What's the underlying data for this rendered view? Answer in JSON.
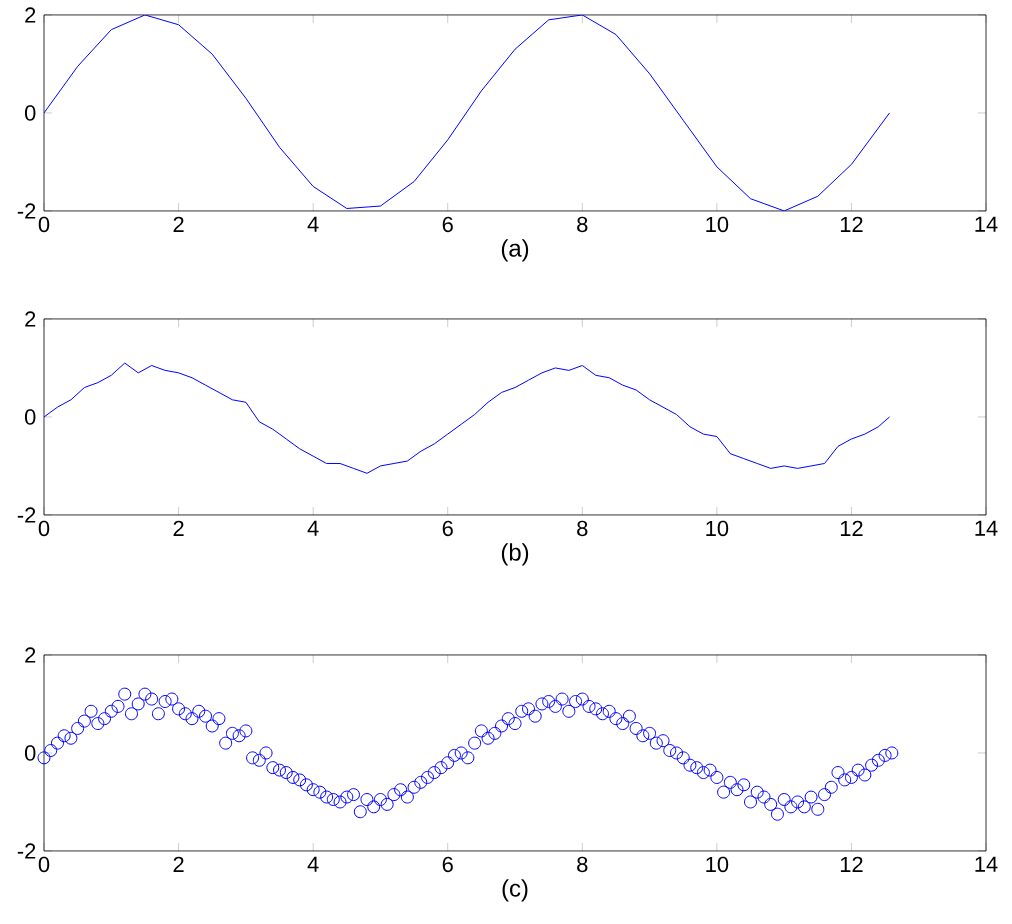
{
  "chart_data": [
    {
      "type": "line",
      "xlabel": "(a)",
      "xlim": [
        0,
        14
      ],
      "ylim": [
        -2,
        2
      ],
      "xticks": [
        0,
        2,
        4,
        6,
        8,
        10,
        12,
        14
      ],
      "yticks": [
        -2,
        0,
        2
      ],
      "series": [
        {
          "color": "#0000ff",
          "x": [
            0,
            0.5,
            1,
            1.5,
            2,
            2.5,
            3,
            3.5,
            4,
            4.5,
            5,
            5.5,
            6,
            6.5,
            7,
            7.5,
            8,
            8.5,
            9,
            9.5,
            10,
            10.5,
            11,
            11.5,
            12,
            12.566
          ],
          "values": [
            0,
            0.95,
            1.7,
            2.0,
            1.8,
            1.2,
            0.3,
            -0.7,
            -1.5,
            -1.95,
            -1.9,
            -1.4,
            -0.55,
            0.45,
            1.3,
            1.9,
            2.0,
            1.6,
            0.8,
            -0.15,
            -1.1,
            -1.75,
            -2.0,
            -1.7,
            -1.05,
            0
          ]
        }
      ]
    },
    {
      "type": "line",
      "xlabel": "(b)",
      "xlim": [
        0,
        14
      ],
      "ylim": [
        -2,
        2
      ],
      "xticks": [
        0,
        2,
        4,
        6,
        8,
        10,
        12,
        14
      ],
      "yticks": [
        -2,
        0,
        2
      ],
      "series": [
        {
          "color": "#0000ff",
          "x": [
            0,
            0.2,
            0.4,
            0.6,
            0.8,
            1.0,
            1.2,
            1.4,
            1.6,
            1.8,
            2.0,
            2.2,
            2.4,
            2.6,
            2.8,
            3.0,
            3.2,
            3.4,
            3.6,
            3.8,
            4.0,
            4.2,
            4.4,
            4.6,
            4.8,
            5.0,
            5.2,
            5.4,
            5.6,
            5.8,
            6.0,
            6.2,
            6.4,
            6.6,
            6.8,
            7.0,
            7.2,
            7.4,
            7.6,
            7.8,
            8.0,
            8.2,
            8.4,
            8.6,
            8.8,
            9.0,
            9.2,
            9.4,
            9.6,
            9.8,
            10.0,
            10.2,
            10.4,
            10.6,
            10.8,
            11.0,
            11.2,
            11.4,
            11.6,
            11.8,
            12.0,
            12.2,
            12.4,
            12.566
          ],
          "values": [
            0,
            0.2,
            0.35,
            0.6,
            0.7,
            0.85,
            1.1,
            0.9,
            1.05,
            0.95,
            0.9,
            0.8,
            0.65,
            0.5,
            0.35,
            0.3,
            -0.1,
            -0.25,
            -0.45,
            -0.65,
            -0.8,
            -0.95,
            -0.95,
            -1.05,
            -1.15,
            -1.0,
            -0.95,
            -0.9,
            -0.7,
            -0.55,
            -0.35,
            -0.15,
            0.05,
            0.3,
            0.5,
            0.6,
            0.75,
            0.9,
            1.0,
            0.95,
            1.05,
            0.85,
            0.8,
            0.65,
            0.55,
            0.35,
            0.2,
            0.05,
            -0.2,
            -0.35,
            -0.4,
            -0.75,
            -0.85,
            -0.95,
            -1.05,
            -1.0,
            -1.05,
            -1.0,
            -0.95,
            -0.6,
            -0.45,
            -0.35,
            -0.2,
            0
          ]
        }
      ]
    },
    {
      "type": "scatter",
      "xlabel": "(c)",
      "xlim": [
        0,
        14
      ],
      "ylim": [
        -2,
        2
      ],
      "xticks": [
        0,
        2,
        4,
        6,
        8,
        10,
        12,
        14
      ],
      "yticks": [
        -2,
        0,
        2
      ],
      "marker": "circle",
      "series": [
        {
          "color": "#0000ff",
          "x": [
            0,
            0.1,
            0.2,
            0.3,
            0.4,
            0.5,
            0.6,
            0.7,
            0.8,
            0.9,
            1.0,
            1.1,
            1.2,
            1.3,
            1.4,
            1.5,
            1.6,
            1.7,
            1.8,
            1.9,
            2.0,
            2.1,
            2.2,
            2.3,
            2.4,
            2.5,
            2.6,
            2.7,
            2.8,
            2.9,
            3.0,
            3.1,
            3.2,
            3.3,
            3.4,
            3.5,
            3.6,
            3.7,
            3.8,
            3.9,
            4.0,
            4.1,
            4.2,
            4.3,
            4.4,
            4.5,
            4.6,
            4.7,
            4.8,
            4.9,
            5.0,
            5.1,
            5.2,
            5.3,
            5.4,
            5.5,
            5.6,
            5.7,
            5.8,
            5.9,
            6.0,
            6.1,
            6.2,
            6.3,
            6.4,
            6.5,
            6.6,
            6.7,
            6.8,
            6.9,
            7.0,
            7.1,
            7.2,
            7.3,
            7.4,
            7.5,
            7.6,
            7.7,
            7.8,
            7.9,
            8.0,
            8.1,
            8.2,
            8.3,
            8.4,
            8.5,
            8.6,
            8.7,
            8.8,
            8.9,
            9.0,
            9.1,
            9.2,
            9.3,
            9.4,
            9.5,
            9.6,
            9.7,
            9.8,
            9.9,
            10.0,
            10.1,
            10.2,
            10.3,
            10.4,
            10.5,
            10.6,
            10.7,
            10.8,
            10.9,
            11.0,
            11.1,
            11.2,
            11.3,
            11.4,
            11.5,
            11.6,
            11.7,
            11.8,
            11.9,
            12.0,
            12.1,
            12.2,
            12.3,
            12.4,
            12.5,
            12.6
          ],
          "values": [
            -0.1,
            0.05,
            0.2,
            0.35,
            0.3,
            0.5,
            0.65,
            0.85,
            0.6,
            0.7,
            0.85,
            0.95,
            1.2,
            0.8,
            1.0,
            1.2,
            1.1,
            0.8,
            1.05,
            1.1,
            0.9,
            0.8,
            0.7,
            0.85,
            0.75,
            0.55,
            0.7,
            0.2,
            0.4,
            0.35,
            0.45,
            -0.1,
            -0.15,
            0.0,
            -0.3,
            -0.35,
            -0.4,
            -0.5,
            -0.55,
            -0.65,
            -0.75,
            -0.8,
            -0.9,
            -0.95,
            -1.0,
            -0.9,
            -0.85,
            -1.2,
            -0.95,
            -1.1,
            -0.95,
            -1.05,
            -0.85,
            -0.75,
            -0.9,
            -0.7,
            -0.6,
            -0.5,
            -0.4,
            -0.3,
            -0.2,
            -0.05,
            0.0,
            -0.1,
            0.2,
            0.45,
            0.3,
            0.4,
            0.55,
            0.7,
            0.6,
            0.85,
            0.9,
            0.75,
            1.0,
            1.05,
            0.95,
            1.1,
            0.85,
            1.05,
            1.1,
            0.95,
            0.9,
            0.8,
            0.85,
            0.7,
            0.6,
            0.75,
            0.5,
            0.35,
            0.4,
            0.2,
            0.25,
            0.05,
            0.0,
            -0.1,
            -0.25,
            -0.3,
            -0.4,
            -0.35,
            -0.5,
            -0.8,
            -0.6,
            -0.75,
            -0.65,
            -1.0,
            -0.8,
            -0.9,
            -1.05,
            -1.25,
            -0.95,
            -1.1,
            -1.0,
            -1.1,
            -0.9,
            -1.15,
            -0.85,
            -0.7,
            -0.4,
            -0.55,
            -0.5,
            -0.35,
            -0.45,
            -0.25,
            -0.15,
            -0.05,
            0.0
          ]
        }
      ]
    }
  ]
}
